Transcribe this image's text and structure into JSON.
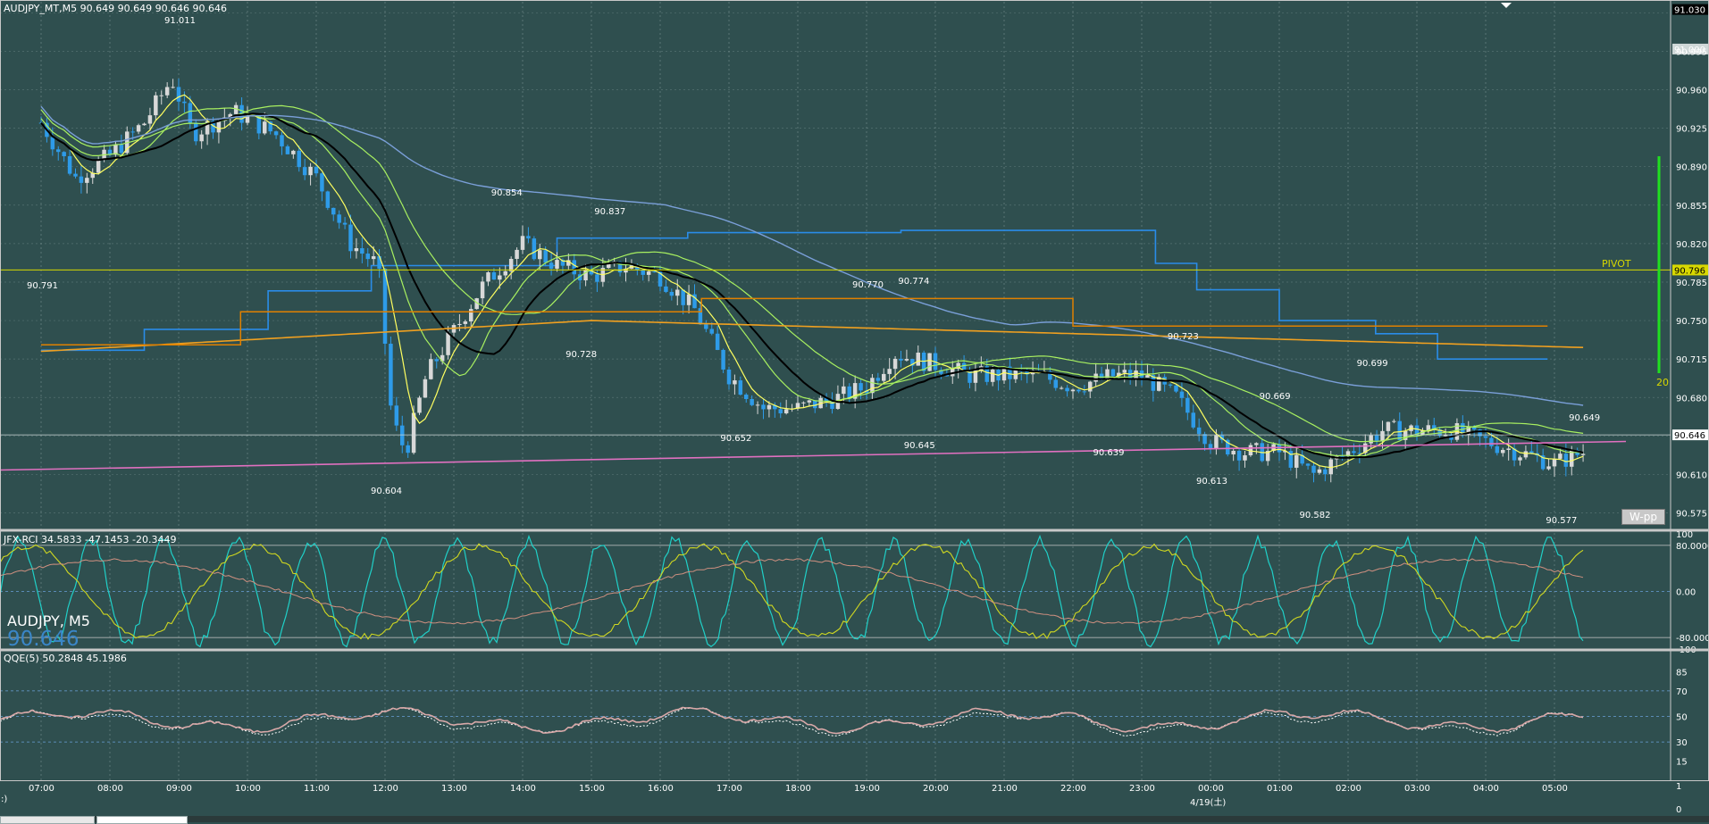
{
  "symbol_header": "AUDJPY_MT,M5  90.649 90.649 90.646 90.646",
  "symbol_label": "AUDJPY, M5",
  "symbol_price": "90.646",
  "colors": {
    "background": "#2f4f4f",
    "grid": "#9ab0b0",
    "pivot": "#d8d800",
    "current_price": "#ffffff",
    "bull_candle": "#d8d8d8",
    "bear_candle": "#2e9be8",
    "sma_black": "#000000",
    "ema_yellow": "#ffff60",
    "ema_green": "#a8f060",
    "ma_blue": "#7a9fd8",
    "orange": "#f0a020",
    "orange_dark": "#e08000",
    "step_blue": "#2a8ce8",
    "pink": "#e070c0",
    "rci_cyan": "#20d0c8",
    "rci_yellow": "#d0d820",
    "rci_rose": "#d09080",
    "qqe_line": "#d8a8a8",
    "qqe_dots": "#ffffff",
    "green_bar": "#20e020"
  },
  "main_price_labels": [
    "90.995",
    "90.960",
    "90.925",
    "90.890",
    "90.855",
    "90.820",
    "90.785",
    "90.750",
    "90.715",
    "90.680",
    "90.610",
    "90.575"
  ],
  "main_top_tags": [
    "91.030",
    "91.000"
  ],
  "pivot_label": "PIVOT",
  "pivot_value": "90.796",
  "current_value": "90.646",
  "green_bar_label": "20",
  "w_pp": "W-pp",
  "chart_annotations": [
    "91.011",
    "90.791",
    "90.854",
    "90.837",
    "90.604",
    "90.728",
    "90.652",
    "90.770",
    "90.774",
    "90.645",
    "90.723",
    "90.639",
    "90.613",
    "90.669",
    "90.699",
    "90.582",
    "90.649",
    "90.577"
  ],
  "rci": {
    "header": "JFX-RCI 34.5833 -47.1453 -20.3449",
    "labels": [
      "100",
      "80.0000",
      "0.00",
      "-80.0000",
      "-100"
    ]
  },
  "qqe": {
    "header": "QQE(5) 50.2848 45.1986",
    "labels": [
      "85",
      "70",
      "50",
      "30",
      "15"
    ]
  },
  "time_axis": [
    "07:00",
    "08:00",
    "09:00",
    "10:00",
    "11:00",
    "12:00",
    "13:00",
    "14:00",
    "15:00",
    "16:00",
    "17:00",
    "18:00",
    "19:00",
    "20:00",
    "21:00",
    "22:00",
    "23:00",
    "00:00",
    "01:00",
    "02:00",
    "03:00",
    "04:00",
    "05:00"
  ],
  "date_label": "4/19(土)",
  "bottom_axis_labels": [
    "1",
    "0"
  ],
  "corner_mark": ":)",
  "chart_data": {
    "type": "candlestick",
    "title": "AUDJPY_MT,M5",
    "ylim": [
      90.56,
      91.04
    ],
    "high_low_labels": [
      {
        "time": "09:00",
        "price": 91.011
      },
      {
        "time": "07:00",
        "price": 90.791
      },
      {
        "time": "13:45",
        "price": 90.854
      },
      {
        "time": "15:15",
        "price": 90.837
      },
      {
        "time": "12:00",
        "price": 90.604
      },
      {
        "time": "14:50",
        "price": 90.728
      },
      {
        "time": "17:05",
        "price": 90.652
      },
      {
        "time": "19:00",
        "price": 90.77
      },
      {
        "time": "19:40",
        "price": 90.774
      },
      {
        "time": "19:45",
        "price": 90.645
      },
      {
        "time": "23:35",
        "price": 90.723
      },
      {
        "time": "22:30",
        "price": 90.639
      },
      {
        "time": "00:00",
        "price": 90.613
      },
      {
        "time": "00:55",
        "price": 90.669
      },
      {
        "time": "02:20",
        "price": 90.699
      },
      {
        "time": "01:30",
        "price": 90.582
      },
      {
        "time": "05:25",
        "price": 90.649
      },
      {
        "time": "05:05",
        "price": 90.577
      }
    ],
    "pivot": 90.796,
    "last_price": 90.646
  }
}
